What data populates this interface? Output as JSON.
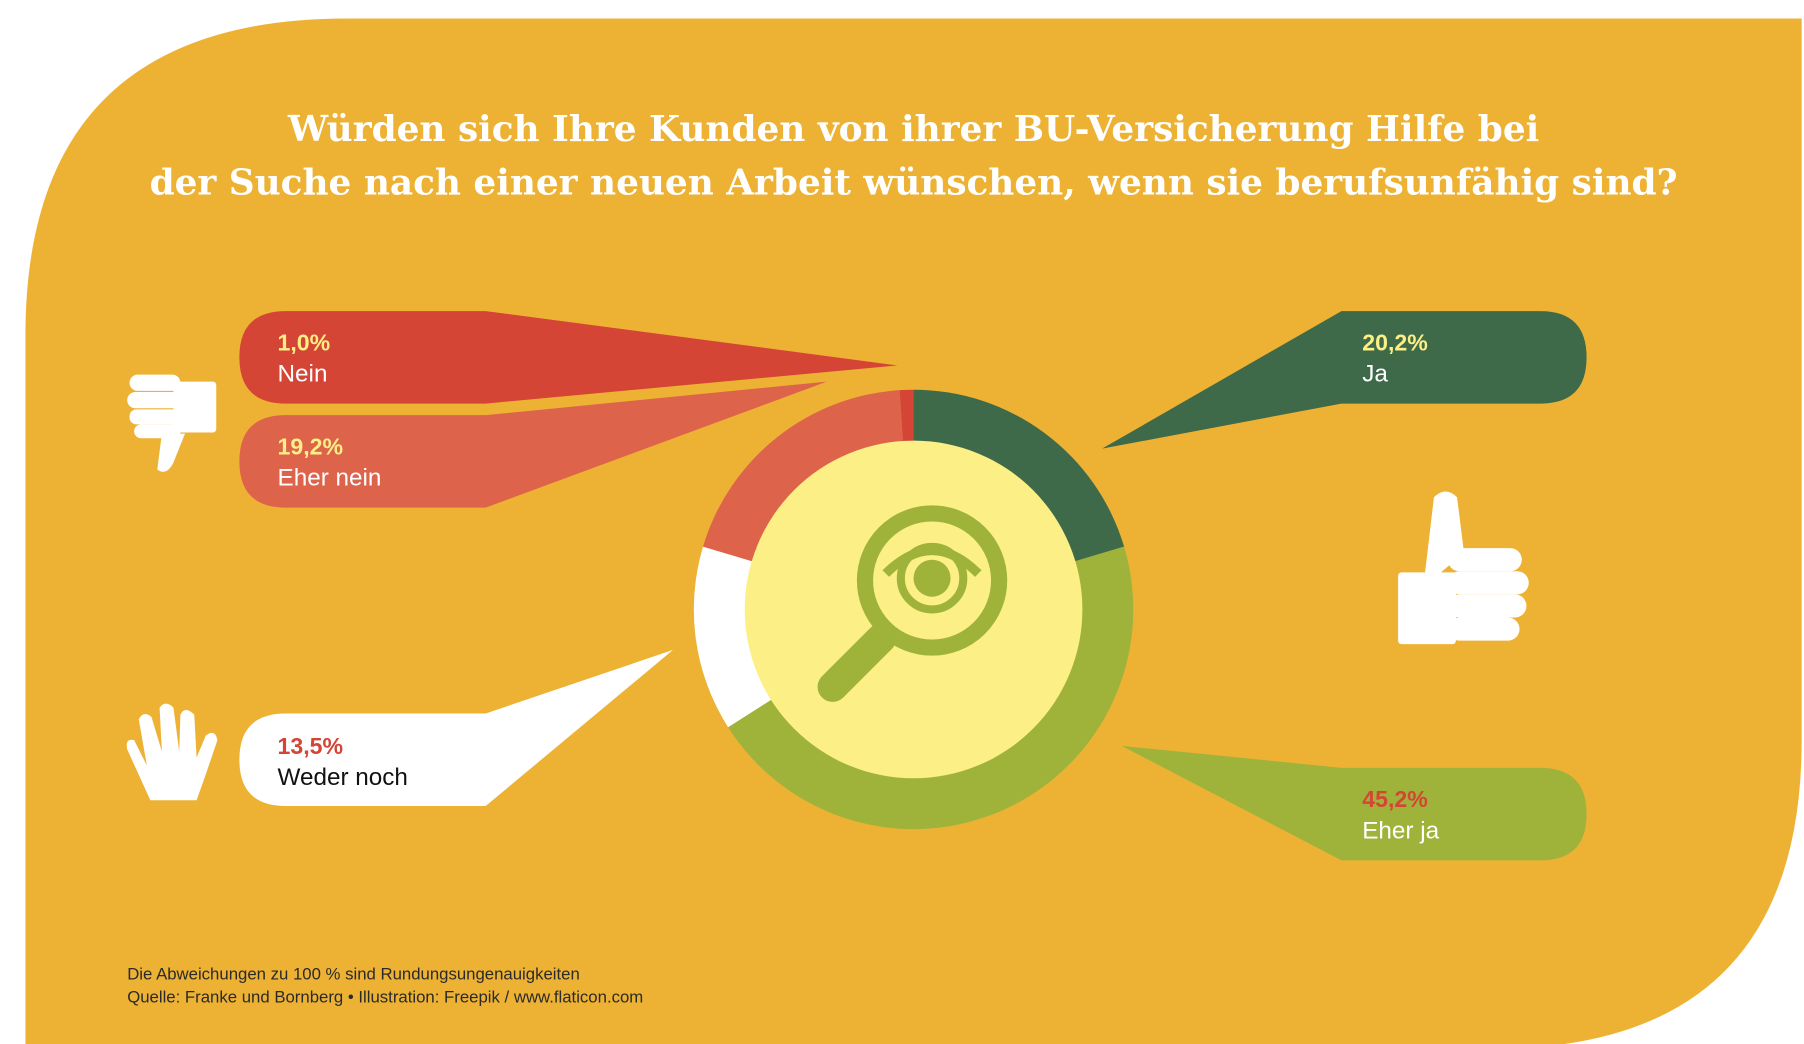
{
  "colors": {
    "background": "#edb234",
    "ja": "#3f6a4a",
    "eher_ja": "#9fb33b",
    "weder_noch": "#ffffff",
    "eher_nein": "#dd634b",
    "nein": "#d44535",
    "center": "#fbef85",
    "pct_yellow": "#fbef85",
    "pct_red": "#d44535"
  },
  "chart_data": {
    "type": "pie",
    "title": "Würden sich Ihre Kunden von ihrer BU-Versicherung Hilfe bei der Suche nach einer neuen Arbeit wünschen, wenn sie berufsunfähig sind?",
    "title_lines": [
      "Würden sich Ihre Kunden von ihrer BU-Versicherung Hilfe bei",
      "der Suche nach einer neuen Arbeit wünschen, wenn sie berufsunfähig sind?"
    ],
    "donut": true,
    "start": "top-clockwise",
    "slices": [
      {
        "key": "ja",
        "label": "Ja",
        "value": 20.2,
        "value_label": "20,2%",
        "color": "#3f6a4a"
      },
      {
        "key": "eher_ja",
        "label": "Eher ja",
        "value": 45.2,
        "value_label": "45,2%",
        "color": "#9fb33b"
      },
      {
        "key": "weder_noch",
        "label": "Weder noch",
        "value": 13.5,
        "value_label": "13,5%",
        "color": "#ffffff"
      },
      {
        "key": "eher_nein",
        "label": "Eher nein",
        "value": 19.2,
        "value_label": "19,2%",
        "color": "#dd634b"
      },
      {
        "key": "nein",
        "label": "Nein",
        "value": 1.0,
        "value_label": "1,0%",
        "color": "#d44535"
      }
    ]
  },
  "footnote": {
    "line1": "Die Abweichungen zu 100 % sind Rundungsungenauigkeiten",
    "line2": "Quelle: Franke und Bornberg • Illustration: Freepik / www.flaticon.com"
  }
}
